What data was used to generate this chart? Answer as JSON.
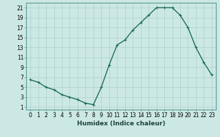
{
  "x": [
    0,
    1,
    2,
    3,
    4,
    5,
    6,
    7,
    8,
    9,
    10,
    11,
    12,
    13,
    14,
    15,
    16,
    17,
    18,
    19,
    20,
    21,
    22,
    23
  ],
  "y": [
    6.5,
    6.0,
    5.0,
    4.5,
    3.5,
    3.0,
    2.5,
    1.8,
    1.5,
    5.0,
    9.5,
    13.5,
    14.5,
    16.5,
    18.0,
    19.5,
    21.0,
    21.0,
    21.0,
    19.5,
    17.0,
    13.0,
    10.0,
    7.5
  ],
  "line_color": "#1a6b5a",
  "marker": "+",
  "bg_color": "#cce8e4",
  "grid_color": "#aacfcc",
  "xlabel": "Humidex (Indice chaleur)",
  "ylim": [
    0.5,
    22
  ],
  "xlim": [
    -0.5,
    23.5
  ],
  "yticks": [
    1,
    3,
    5,
    7,
    9,
    11,
    13,
    15,
    17,
    19,
    21
  ],
  "xticks": [
    0,
    1,
    2,
    3,
    4,
    5,
    6,
    7,
    8,
    9,
    10,
    11,
    12,
    13,
    14,
    15,
    16,
    17,
    18,
    19,
    20,
    21,
    22,
    23
  ],
  "xtick_labels": [
    "0",
    "1",
    "2",
    "3",
    "4",
    "5",
    "6",
    "7",
    "8",
    "9",
    "10",
    "11",
    "12",
    "13",
    "14",
    "15",
    "16",
    "17",
    "18",
    "19",
    "20",
    "21",
    "22",
    "23"
  ],
  "xlabel_fontsize": 6.5,
  "tick_fontsize": 5.5,
  "linewidth": 1.0,
  "markersize": 3.5,
  "markeredgewidth": 0.8
}
